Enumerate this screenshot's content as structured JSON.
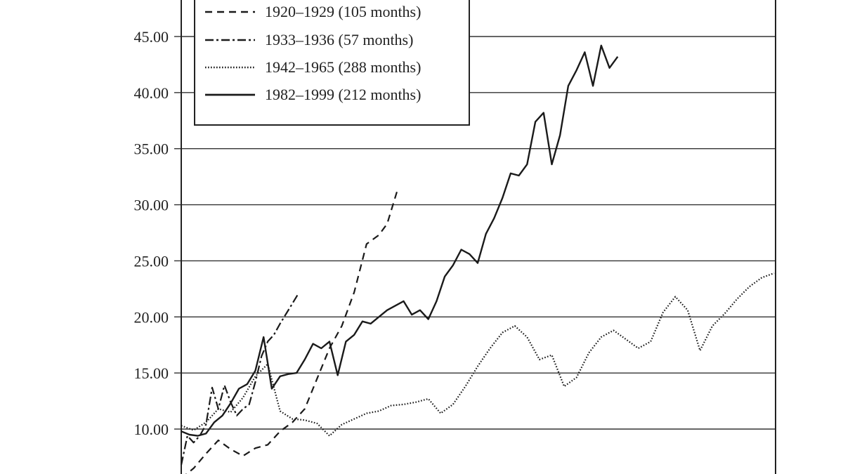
{
  "chart_data": {
    "type": "line",
    "title": "",
    "xlabel": "",
    "ylabel": "",
    "ylim": [
      5,
      50
    ],
    "yticks": [
      "10.00",
      "15.00",
      "20.00",
      "25.00",
      "30.00",
      "35.00",
      "40.00",
      "45.00"
    ],
    "x_unit": "months",
    "xlim": [
      0,
      288
    ],
    "grid": "horizontal",
    "legend": "top-left",
    "series": [
      {
        "name": "1920–1929 (105 months)",
        "style": "dashed",
        "x": [
          0,
          6,
          12,
          18,
          24,
          30,
          36,
          42,
          48,
          54,
          60,
          66,
          72,
          78,
          84,
          90,
          96,
          100,
          105
        ],
        "values": [
          5.6,
          6.5,
          7.8,
          9.0,
          8.2,
          7.6,
          8.3,
          8.6,
          9.8,
          10.6,
          11.8,
          14.5,
          17.2,
          19.2,
          22.2,
          26.5,
          27.3,
          28.3,
          31.3
        ]
      },
      {
        "name": "1933–1936 (57 months)",
        "style": "dash-dot",
        "x": [
          0,
          3,
          6,
          9,
          12,
          15,
          18,
          21,
          24,
          27,
          30,
          33,
          36,
          39,
          42,
          45,
          48,
          51,
          54,
          57
        ],
        "values": [
          6.8,
          9.4,
          8.8,
          9.4,
          10.4,
          13.7,
          11.8,
          13.9,
          12.4,
          11.2,
          11.8,
          12.2,
          14.2,
          16.5,
          17.8,
          18.4,
          19.4,
          20.3,
          21.2,
          22.1
        ]
      },
      {
        "name": "1942–1965 (288 months)",
        "style": "dotted",
        "x": [
          0,
          6,
          12,
          18,
          24,
          30,
          36,
          42,
          48,
          54,
          60,
          66,
          72,
          78,
          84,
          90,
          96,
          102,
          108,
          114,
          120,
          126,
          132,
          138,
          144,
          150,
          156,
          162,
          168,
          174,
          180,
          186,
          192,
          198,
          204,
          210,
          216,
          222,
          228,
          234,
          240,
          246,
          252,
          258,
          264,
          270,
          276,
          282,
          288
        ],
        "values": [
          10.3,
          9.9,
          10.6,
          11.8,
          11.5,
          12.8,
          14.7,
          15.8,
          11.6,
          10.9,
          10.8,
          10.5,
          9.4,
          10.4,
          10.9,
          11.4,
          11.6,
          12.1,
          12.2,
          12.4,
          12.7,
          11.4,
          12.2,
          13.8,
          15.6,
          17.2,
          18.6,
          19.2,
          18.2,
          16.2,
          16.6,
          13.8,
          14.6,
          16.8,
          18.2,
          18.8,
          18.0,
          17.2,
          17.8,
          20.4,
          21.8,
          20.6,
          17.0,
          19.2,
          20.3,
          21.6,
          22.7,
          23.5,
          23.9
        ]
      },
      {
        "name": "1982–1999 (212 months)",
        "style": "solid",
        "x": [
          0,
          4,
          8,
          12,
          16,
          20,
          24,
          28,
          32,
          36,
          40,
          44,
          48,
          52,
          56,
          60,
          64,
          68,
          72,
          76,
          80,
          84,
          88,
          92,
          96,
          100,
          104,
          108,
          112,
          116,
          120,
          124,
          128,
          132,
          136,
          140,
          144,
          148,
          152,
          156,
          160,
          164,
          168,
          172,
          176,
          180,
          184,
          188,
          192,
          196,
          200,
          204,
          208,
          212
        ],
        "values": [
          9.8,
          9.5,
          9.4,
          9.6,
          10.6,
          11.2,
          12.3,
          13.6,
          14.0,
          15.2,
          18.2,
          13.6,
          14.7,
          14.9,
          15.0,
          16.2,
          17.6,
          17.2,
          17.8,
          14.8,
          17.8,
          18.4,
          19.6,
          19.4,
          20.0,
          20.6,
          21.0,
          21.4,
          20.2,
          20.6,
          19.8,
          21.4,
          23.6,
          24.6,
          26.0,
          25.6,
          24.8,
          27.4,
          28.8,
          30.6,
          32.8,
          32.6,
          33.6,
          37.4,
          38.2,
          33.6,
          36.2,
          40.6,
          42.0,
          43.6,
          40.6,
          44.2,
          42.2,
          43.2
        ]
      }
    ]
  }
}
